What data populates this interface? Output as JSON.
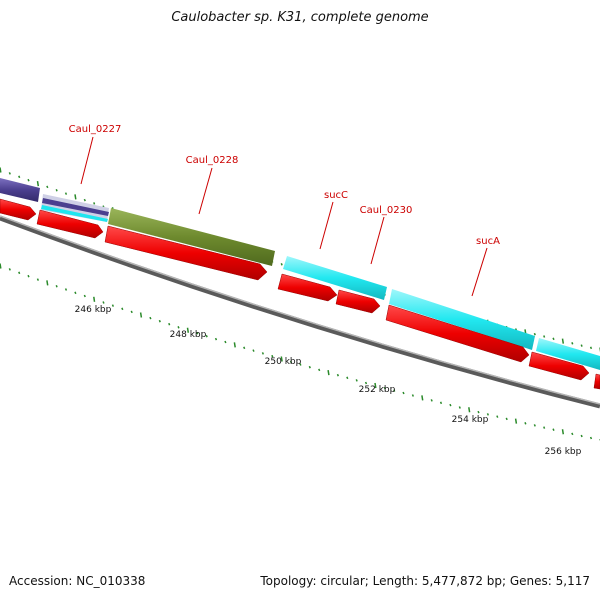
{
  "title": "Caulobacter sp. K31, complete genome",
  "footer": {
    "accession": "Accession: NC_010338",
    "stats": "Topology: circular; Length: 5,477,872 bp; Genes: 5,117"
  },
  "colors": {
    "cds": "#ee0000",
    "backbone": "#888888",
    "ticks": "#2a8a2a",
    "label": "#cc0000",
    "purple": "#4b3f8f",
    "olive": "#6e8a2e",
    "cyan": "#1fe6ef"
  },
  "gene_labels": [
    "Caul_0227",
    "Caul_0228",
    "sucC",
    "Caul_0230",
    "sucA"
  ],
  "kbp_labels": [
    "246 kbp",
    "248 kbp",
    "250 kbp",
    "252 kbp",
    "254 kbp",
    "256 kbp"
  ]
}
